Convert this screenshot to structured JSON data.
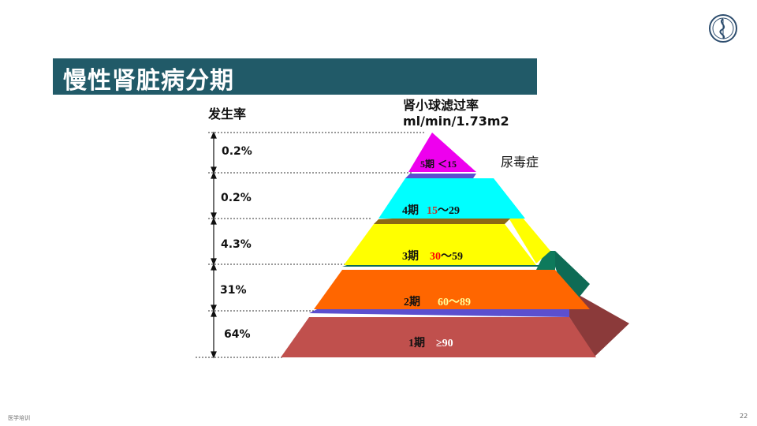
{
  "slide": {
    "title": "慢性肾脏病分期",
    "page_number": "22",
    "footer_text": "医学培训"
  },
  "diagram": {
    "incidence_header": "发生率",
    "gfr_header_line1": "肾小球滤过率",
    "gfr_header_line2": "ml/min/1.73m2",
    "uremia_label": "尿毒症",
    "incidence": [
      "0.2%",
      "0.2%",
      "4.3%",
      "31%",
      "64%"
    ],
    "stages": [
      {
        "stage": "5期",
        "range": "＜15",
        "color": "#ee00ee"
      },
      {
        "stage": "4期",
        "range_highlight": "15",
        "range_rest": "～29",
        "color": "#00ffff"
      },
      {
        "stage": "3期",
        "range_highlight": "30",
        "range_rest": "～59",
        "color": "#ffff00"
      },
      {
        "stage": "2期",
        "range": "60～89",
        "color": "#ff6600"
      },
      {
        "stage": "1期",
        "range": "≥90",
        "color": "#c0504d"
      }
    ]
  },
  "colors": {
    "title_bar": "#215a68",
    "stage4_range_highlight": "#c0392b",
    "stage3_range_highlight": "#ff0000",
    "stage2_range": "#ffff99",
    "stage1_range": "#ffffff"
  }
}
